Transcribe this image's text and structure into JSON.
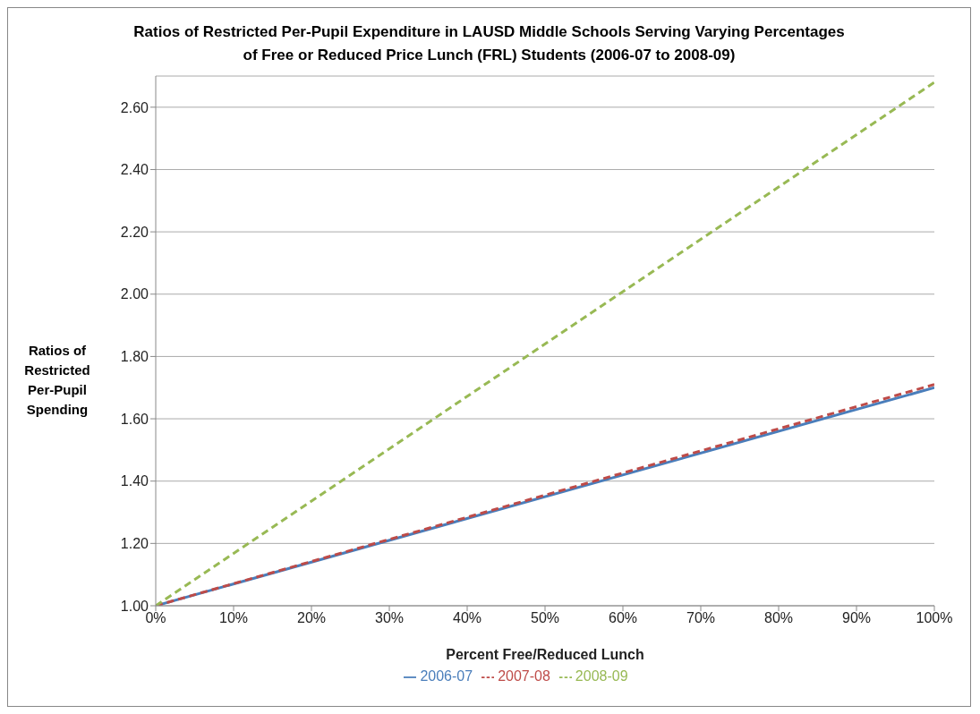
{
  "chart_data": {
    "type": "line",
    "title": "Ratios of Restricted Per-Pupil Expenditure in LAUSD Middle Schools Serving Varying Percentages of Free or Reduced Price Lunch (FRL) Students (2006-07 to 2008-09)",
    "xlabel": "Percent Free/Reduced Lunch",
    "ylabel": "Ratios of Restricted Per-Pupil Spending",
    "x": [
      0,
      100
    ],
    "series": [
      {
        "name": "2006-07",
        "color": "#4a7ebb",
        "values": [
          1.0,
          1.7
        ],
        "line_style": "solid"
      },
      {
        "name": "2007-08",
        "color": "#be4b48",
        "values": [
          1.0,
          1.71
        ],
        "line_style": "dashed"
      },
      {
        "name": "2008-09",
        "color": "#98b954",
        "values": [
          1.0,
          2.68
        ],
        "line_style": "dashed"
      }
    ],
    "xlim": [
      0,
      100
    ],
    "xticks": [
      {
        "value": 0,
        "label": "0%"
      },
      {
        "value": 10,
        "label": "10%"
      },
      {
        "value": 20,
        "label": "20%"
      },
      {
        "value": 30,
        "label": "30%"
      },
      {
        "value": 40,
        "label": "40%"
      },
      {
        "value": 50,
        "label": "50%"
      },
      {
        "value": 60,
        "label": "60%"
      },
      {
        "value": 70,
        "label": "70%"
      },
      {
        "value": 80,
        "label": "80%"
      },
      {
        "value": 90,
        "label": "90%"
      },
      {
        "value": 100,
        "label": "100%"
      }
    ],
    "ylim": [
      1.0,
      2.7
    ],
    "yticks": [
      {
        "value": 1.0,
        "label": "1.00"
      },
      {
        "value": 1.2,
        "label": "1.20"
      },
      {
        "value": 1.4,
        "label": "1.40"
      },
      {
        "value": 1.6,
        "label": "1.60"
      },
      {
        "value": 1.8,
        "label": "1.80"
      },
      {
        "value": 2.0,
        "label": "2.00"
      },
      {
        "value": 2.2,
        "label": "2.20"
      },
      {
        "value": 2.4,
        "label": "2.40"
      },
      {
        "value": 2.6,
        "label": "2.60"
      }
    ],
    "grid": "y",
    "legend": "bottom",
    "marker": "none"
  }
}
